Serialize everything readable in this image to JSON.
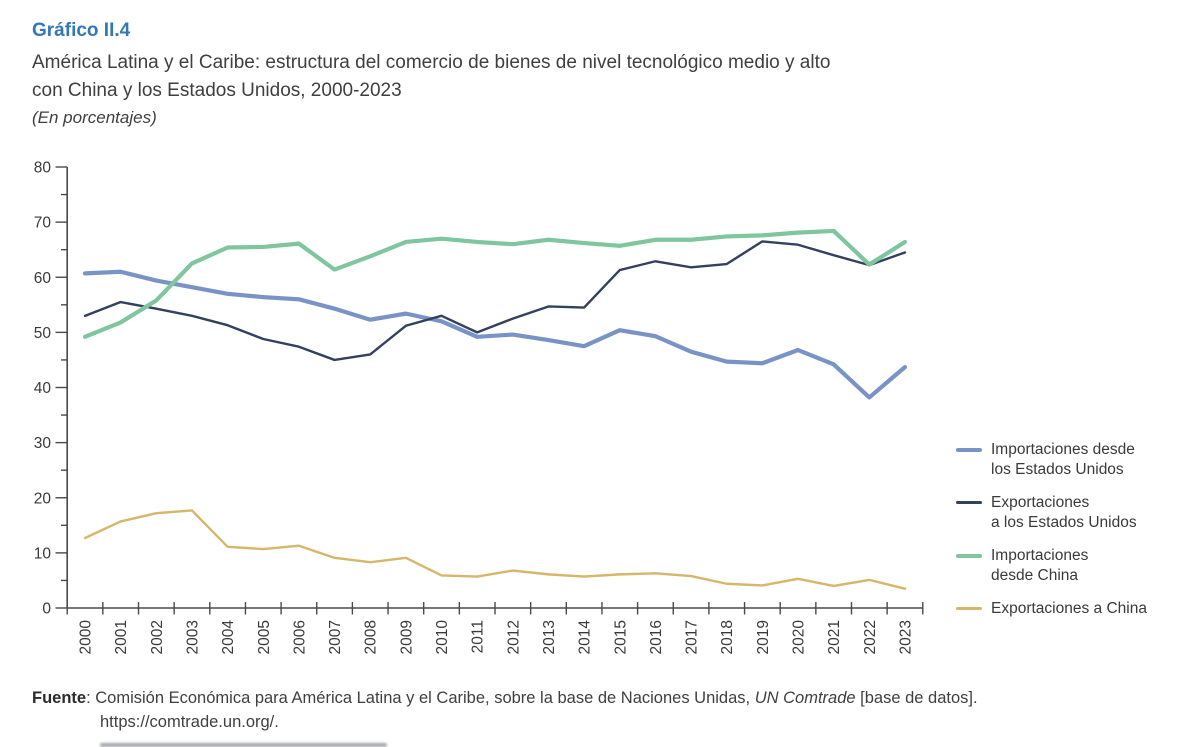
{
  "figure": {
    "label": "Gráfico II.4",
    "title_line1": "América Latina y el Caribe: estructura del comercio de bienes de nivel tecnológico medio y alto",
    "title_line2": "con China y los Estados Unidos, 2000-2023",
    "unit_note": "(En porcentajes)"
  },
  "source": {
    "label": "Fuente",
    "text1": ": Comisión Económica para América Latina y el Caribe, sobre la base de Naciones Unidas, ",
    "db": "UN Comtrade",
    "text2": " [base de datos].",
    "line2": "https://comtrade.un.org/."
  },
  "colors": {
    "title_accent": "#3278B5",
    "axis": "#4A4A4A",
    "tick_label": "#3A3A3A",
    "body_text": "#3F3F3F"
  },
  "chart_data": {
    "type": "line",
    "categories": [
      "2000",
      "2001",
      "2002",
      "2003",
      "2004",
      "2005",
      "2006",
      "2007",
      "2008",
      "2009",
      "2010",
      "2011",
      "2012",
      "2013",
      "2014",
      "2015",
      "2016",
      "2017",
      "2018",
      "2019",
      "2020",
      "2021",
      "2022",
      "2023"
    ],
    "series": [
      {
        "name": "Importaciones desde los Estados Unidos",
        "legend_lines": [
          "Importaciones desde",
          "los Estados Unidos"
        ],
        "color": "#7A93C7",
        "stroke_width": 4.2,
        "values": [
          60.7,
          61.0,
          59.4,
          58.2,
          57.0,
          56.4,
          56.0,
          54.3,
          52.3,
          53.4,
          52.0,
          49.2,
          49.6,
          48.6,
          47.5,
          50.4,
          49.3,
          46.5,
          44.7,
          44.4,
          46.8,
          44.2,
          38.2,
          43.7
        ]
      },
      {
        "name": "Exportaciones a los Estados Unidos",
        "legend_lines": [
          "Exportaciones",
          "a los Estados Unidos"
        ],
        "color": "#33415F",
        "stroke_width": 2.4,
        "values": [
          53.0,
          55.5,
          54.3,
          53.0,
          51.3,
          48.8,
          47.4,
          45.0,
          46.0,
          51.2,
          53.0,
          50.0,
          52.5,
          54.7,
          54.5,
          61.3,
          62.9,
          61.8,
          62.4,
          66.5,
          65.9,
          64.0,
          62.2,
          64.5
        ]
      },
      {
        "name": "Importaciones desde China",
        "legend_lines": [
          "Importaciones",
          "desde China"
        ],
        "color": "#7FC59D",
        "stroke_width": 4.2,
        "values": [
          49.2,
          51.8,
          55.8,
          62.5,
          65.4,
          65.5,
          66.1,
          61.4,
          63.8,
          66.4,
          67.0,
          66.4,
          66.0,
          66.8,
          66.2,
          65.7,
          66.8,
          66.8,
          67.4,
          67.6,
          68.1,
          68.4,
          62.3,
          66.4
        ]
      },
      {
        "name": "Exportaciones a China",
        "legend_lines": [
          "Exportaciones a China"
        ],
        "color": "#D5B66B",
        "stroke_width": 2.4,
        "values": [
          12.7,
          15.7,
          17.2,
          17.7,
          11.1,
          10.7,
          11.3,
          9.1,
          8.3,
          9.1,
          5.9,
          5.7,
          6.8,
          6.1,
          5.7,
          6.1,
          6.3,
          5.8,
          4.4,
          4.1,
          5.3,
          4.0,
          5.1,
          3.5
        ]
      }
    ],
    "title": "América Latina y el Caribe: estructura del comercio de bienes de nivel tecnológico medio y alto con China y los Estados Unidos, 2000-2023",
    "xlabel": "",
    "ylabel": "",
    "ylim": [
      0,
      80
    ],
    "yticks": [
      0,
      10,
      20,
      30,
      40,
      50,
      60,
      70,
      80
    ],
    "ytick_minor_step": 5,
    "grid": false,
    "legend_position": "right"
  }
}
